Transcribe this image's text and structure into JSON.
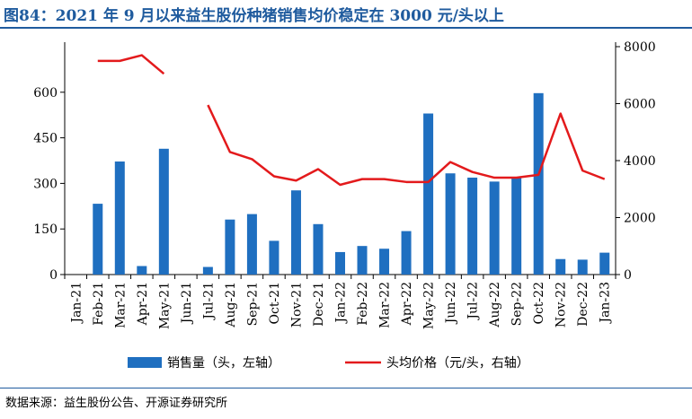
{
  "title": "图84：2021 年 9 月以来益生股份种猪销售均价稳定在 3000 元/头以上",
  "source": "数据来源：益生股份公告、开源证券研究所",
  "colors": {
    "bar": "#1f6fc0",
    "line": "#e31a1c",
    "title": "#1f5b9e"
  },
  "chart_data": {
    "type": "bar",
    "categories": [
      "Jan-21",
      "Feb-21",
      "Mar-21",
      "Apr-21",
      "May-21",
      "Jun-21",
      "Jul-21",
      "Aug-21",
      "Sep-21",
      "Oct-21",
      "Nov-21",
      "Dec-21",
      "Jan-22",
      "Feb-22",
      "Mar-22",
      "Apr-22",
      "May-22",
      "Jun-22",
      "Jul-22",
      "Aug-22",
      "Sep-22",
      "Oct-22",
      "Nov-22",
      "Dec-22",
      "Jan-23"
    ],
    "y_left": {
      "ticks": [
        0,
        150,
        300,
        450,
        600
      ],
      "range": [
        0,
        750
      ]
    },
    "y_right": {
      "ticks": [
        0,
        2000,
        4000,
        6000,
        8000
      ],
      "range": [
        0,
        8000
      ]
    },
    "legend_position": "bottom",
    "series": [
      {
        "name": "销售量（头，左轴）",
        "type": "bar",
        "axis": "left",
        "values": [
          0,
          233,
          372,
          28,
          414,
          0,
          25,
          181,
          199,
          111,
          277,
          166,
          74,
          94,
          85,
          143,
          530,
          333,
          319,
          306,
          318,
          597,
          51,
          49,
          72
        ]
      },
      {
        "name": "头均价格（元/头，右轴）",
        "type": "line",
        "axis": "right",
        "values": [
          null,
          7500,
          7500,
          7700,
          7050,
          null,
          5950,
          4300,
          4050,
          3450,
          3300,
          3700,
          3150,
          3350,
          3350,
          3250,
          3250,
          3950,
          3600,
          3400,
          3400,
          3500,
          5650,
          3650,
          3350
        ]
      }
    ]
  }
}
